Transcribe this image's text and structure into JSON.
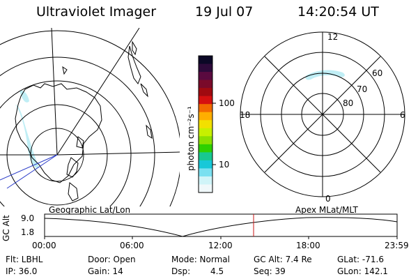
{
  "header": {
    "instrument": "Ultraviolet Imager",
    "date": "19 Jul 07",
    "time": "14:20:54 UT"
  },
  "colorbar": {
    "unit_label": "photon cm⁻²s⁻¹",
    "ticks": [
      "100",
      "10"
    ],
    "colors": [
      "#0b0826",
      "#2d0a3a",
      "#5a0a3f",
      "#7a0a2a",
      "#a00a10",
      "#d51010",
      "#f26a00",
      "#ffae00",
      "#f2e000",
      "#c7f000",
      "#8ce000",
      "#2ed000",
      "#18c890",
      "#18c8d8",
      "#7ae0f0",
      "#d0f4f8",
      "#f0f8fa"
    ]
  },
  "geo_map": {
    "label": "Geographic Lat/Lon",
    "aurora_color": "#b9ecf4"
  },
  "polar_plot": {
    "label": "Apex MLat/MLT",
    "mlt_labels": {
      "top": "12",
      "left": "18",
      "right": "6",
      "bottom": "0"
    },
    "lat_labels": [
      "60",
      "70",
      "80"
    ]
  },
  "orbit_plot": {
    "y_axis_label": "GC Alt",
    "y_ticks": [
      "9.0",
      "1.8"
    ],
    "x_ticks": [
      "00:00",
      "06:00",
      "12:00",
      "18:00",
      "23:59"
    ],
    "current_time_color": "#c81414"
  },
  "status": {
    "row1": {
      "filter": "Flt: LBHL",
      "door": "Door: Open",
      "mode": "Mode: Normal",
      "gc_alt": "GC Alt: 7.4 Re",
      "glat": "GLat: -71.6"
    },
    "row2": {
      "ip": "IP: 36.0",
      "gain": "Gain: 14",
      "dsp_label": "Dsp:",
      "dsp_value": "4.5",
      "seq": "Seq: 39",
      "glon": "GLon: 142.1"
    }
  }
}
